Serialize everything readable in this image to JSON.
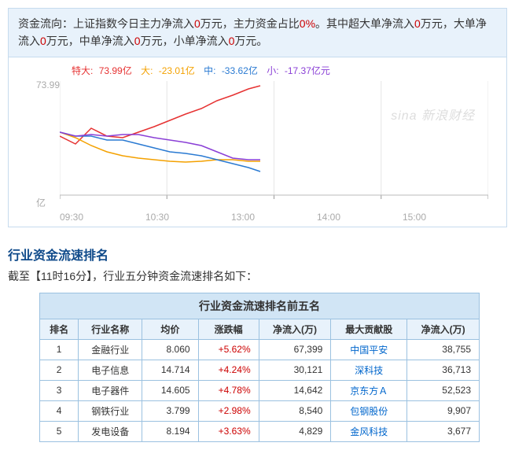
{
  "flow": {
    "prefix": "资金流向：",
    "body_parts": [
      "上证指数今日主力净流入",
      "万元，主力资金占比",
      "。其中超大单净流入",
      "万元，大单净流入",
      "万元，中单净流入",
      "万元，小单净流入",
      "万元。"
    ],
    "zeros": [
      "0",
      "0%",
      "0",
      "0",
      "0",
      "0"
    ]
  },
  "chart": {
    "legend": [
      {
        "label": "特大:",
        "value": "73.99亿",
        "color": "#e63232"
      },
      {
        "label": "大:",
        "value": "-23.01亿",
        "color": "#f4a100"
      },
      {
        "label": "中:",
        "value": "-33.62亿",
        "color": "#2a7ad2"
      },
      {
        "label": "小:",
        "value": "-17.37亿元",
        "color": "#8a3fd6"
      }
    ],
    "ytop": "73.99",
    "yunit": "亿",
    "xticks": [
      "09:30",
      "10:30",
      "13:00",
      "14:00",
      "15:00"
    ],
    "grid_color": "#e6e6e6",
    "watermark": "sina 新浪财经",
    "series": {
      "te_da": {
        "color": "#e63232",
        "points": [
          [
            0,
            70
          ],
          [
            20,
            80
          ],
          [
            40,
            60
          ],
          [
            60,
            70
          ],
          [
            80,
            72
          ],
          [
            100,
            65
          ],
          [
            120,
            58
          ],
          [
            140,
            50
          ],
          [
            160,
            42
          ],
          [
            180,
            35
          ],
          [
            200,
            25
          ],
          [
            220,
            18
          ],
          [
            240,
            10
          ],
          [
            255,
            6
          ]
        ]
      },
      "da": {
        "color": "#f4a100",
        "points": [
          [
            0,
            65
          ],
          [
            20,
            72
          ],
          [
            40,
            82
          ],
          [
            60,
            90
          ],
          [
            80,
            95
          ],
          [
            100,
            98
          ],
          [
            120,
            100
          ],
          [
            140,
            102
          ],
          [
            160,
            103
          ],
          [
            180,
            102
          ],
          [
            200,
            100
          ],
          [
            220,
            100
          ],
          [
            240,
            102
          ],
          [
            255,
            102
          ]
        ]
      },
      "zhong": {
        "color": "#2a7ad2",
        "points": [
          [
            0,
            65
          ],
          [
            20,
            70
          ],
          [
            40,
            70
          ],
          [
            60,
            75
          ],
          [
            80,
            75
          ],
          [
            100,
            80
          ],
          [
            120,
            85
          ],
          [
            140,
            90
          ],
          [
            160,
            92
          ],
          [
            180,
            95
          ],
          [
            200,
            100
          ],
          [
            220,
            105
          ],
          [
            240,
            110
          ],
          [
            255,
            115
          ]
        ]
      },
      "xiao": {
        "color": "#8a3fd6",
        "points": [
          [
            0,
            65
          ],
          [
            20,
            70
          ],
          [
            40,
            68
          ],
          [
            60,
            70
          ],
          [
            80,
            68
          ],
          [
            100,
            68
          ],
          [
            120,
            72
          ],
          [
            140,
            75
          ],
          [
            160,
            78
          ],
          [
            180,
            82
          ],
          [
            200,
            90
          ],
          [
            220,
            98
          ],
          [
            240,
            100
          ],
          [
            255,
            100
          ]
        ]
      }
    }
  },
  "ranking": {
    "section_title": "行业资金流速排名",
    "section_sub_before": "截至【",
    "section_sub_time": "11时16分",
    "section_sub_after": "】，行业五分钟资金流速排名如下：",
    "caption": "行业资金流速排名前五名",
    "headers": [
      "排名",
      "行业名称",
      "均价",
      "涨跌幅",
      "净流入(万)",
      "最大贡献股",
      "净流入(万)"
    ],
    "rows": [
      {
        "rank": "1",
        "ind": "金融行业",
        "price": "8.060",
        "chg": "+5.62%",
        "inflow": "67,399",
        "stock": "中国平安",
        "sinflow": "38,755"
      },
      {
        "rank": "2",
        "ind": "电子信息",
        "price": "14.714",
        "chg": "+4.24%",
        "inflow": "30,121",
        "stock": "深科技",
        "sinflow": "36,713"
      },
      {
        "rank": "3",
        "ind": "电子器件",
        "price": "14.605",
        "chg": "+4.78%",
        "inflow": "14,642",
        "stock": "京东方Ａ",
        "sinflow": "52,523"
      },
      {
        "rank": "4",
        "ind": "钢铁行业",
        "price": "3.799",
        "chg": "+2.98%",
        "inflow": "8,540",
        "stock": "包钢股份",
        "sinflow": "9,907"
      },
      {
        "rank": "5",
        "ind": "发电设备",
        "price": "8.194",
        "chg": "+3.63%",
        "inflow": "4,829",
        "stock": "金风科技",
        "sinflow": "3,677"
      }
    ]
  }
}
